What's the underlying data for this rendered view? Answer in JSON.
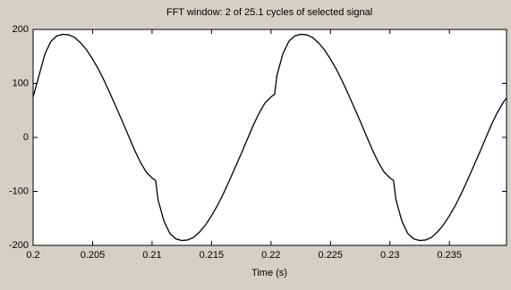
{
  "chart_data": {
    "type": "line",
    "title": "FFT window: 2 of 25.1 cycles of selected signal",
    "x_label": "Time (s)",
    "x": [
      0.2,
      0.2005,
      0.201,
      0.2015,
      0.202,
      0.2025,
      0.203,
      0.2035,
      0.204,
      0.2045,
      0.205,
      0.2055,
      0.206,
      0.2065,
      0.207,
      0.2075,
      0.208,
      0.2085,
      0.209,
      0.2095,
      0.21,
      0.2103,
      0.2105,
      0.211,
      0.2115,
      0.212,
      0.2125,
      0.213,
      0.2135,
      0.214,
      0.2145,
      0.215,
      0.2155,
      0.216,
      0.2165,
      0.217,
      0.2175,
      0.218,
      0.2185,
      0.219,
      0.2195,
      0.22,
      0.2203,
      0.2205,
      0.221,
      0.2215,
      0.222,
      0.2225,
      0.223,
      0.2235,
      0.224,
      0.2245,
      0.225,
      0.2255,
      0.226,
      0.2265,
      0.227,
      0.2275,
      0.228,
      0.2285,
      0.229,
      0.2295,
      0.23,
      0.2303,
      0.2305,
      0.231,
      0.2315,
      0.232,
      0.2325,
      0.233,
      0.2335,
      0.234,
      0.2345,
      0.235,
      0.2355,
      0.236,
      0.2365,
      0.237,
      0.2375,
      0.238,
      0.2385,
      0.239,
      0.2395,
      0.2398
    ],
    "values": [
      75,
      115,
      155,
      178,
      188,
      191,
      190,
      185,
      175,
      162,
      145,
      126,
      104,
      80,
      55,
      30,
      4,
      -22,
      -45,
      -64,
      -75,
      -80,
      -115,
      -155,
      -178,
      -188,
      -191,
      -190,
      -185,
      -175,
      -162,
      -145,
      -126,
      -104,
      -80,
      -55,
      -30,
      -4,
      22,
      45,
      64,
      75,
      80,
      115,
      155,
      178,
      188,
      191,
      190,
      185,
      175,
      162,
      145,
      126,
      104,
      80,
      55,
      30,
      4,
      -22,
      -45,
      -64,
      -75,
      -80,
      -115,
      -155,
      -178,
      -188,
      -191,
      -190,
      -185,
      -175,
      -162,
      -145,
      -126,
      -104,
      -80,
      -55,
      -30,
      -4,
      22,
      45,
      64,
      73
    ],
    "color": "#000000",
    "xlim": [
      0.2,
      0.2398
    ],
    "xticks": [
      0.2,
      0.205,
      0.21,
      0.215,
      0.22,
      0.225,
      0.23,
      0.235
    ],
    "ylim": [
      -200,
      200
    ],
    "yticks": [
      -200,
      -100,
      0,
      100,
      200
    ]
  }
}
